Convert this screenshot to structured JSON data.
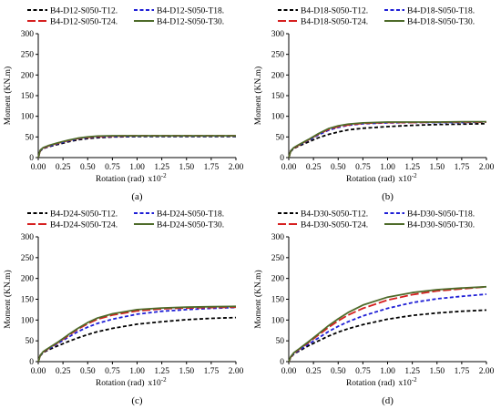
{
  "chart_data": [
    {
      "type": "line",
      "panel_label": "(a)",
      "xlabel": "Rotation (rad)",
      "xlabel_scale": "x10",
      "xlabel_scale_exp": "-2",
      "ylabel": "Moment (KN.m)",
      "xlim": [
        0,
        2.0
      ],
      "ylim": [
        0,
        300
      ],
      "x_ticks": [
        "0.00",
        "0.25",
        "0.50",
        "0.75",
        "1.00",
        "1.25",
        "1.50",
        "1.75",
        "2.00"
      ],
      "y_ticks": [
        "0",
        "50",
        "100",
        "150",
        "200",
        "250",
        "300"
      ],
      "grid": false,
      "legend_position": "top",
      "series": [
        {
          "name": "B4-D12-S050-T12.",
          "color": "#000000",
          "dash": "dashed",
          "x": [
            0,
            0.02,
            0.05,
            0.1,
            0.2,
            0.3,
            0.4,
            0.5,
            0.6,
            0.75,
            1.0,
            1.25,
            1.5,
            1.75,
            2.0
          ],
          "y": [
            0,
            16,
            22,
            26,
            32,
            38,
            43,
            46,
            48,
            50,
            51,
            51,
            51,
            51,
            51
          ]
        },
        {
          "name": "B4-D12-S050-T18.",
          "color": "#1f1fd6",
          "dash": "dashed",
          "x": [
            0,
            0.02,
            0.05,
            0.1,
            0.2,
            0.3,
            0.4,
            0.5,
            0.6,
            0.75,
            1.0,
            1.25,
            1.5,
            1.75,
            2.0
          ],
          "y": [
            0,
            17,
            23,
            27,
            34,
            40,
            45,
            48,
            50,
            51,
            52,
            52,
            52,
            52,
            52
          ]
        },
        {
          "name": "B4-D12-S050-T24.",
          "color": "#d62020",
          "dash": "longdash",
          "x": [
            0,
            0.02,
            0.05,
            0.1,
            0.2,
            0.3,
            0.4,
            0.5,
            0.6,
            0.75,
            1.0,
            1.25,
            1.5,
            1.75,
            2.0
          ],
          "y": [
            0,
            17,
            23,
            28,
            35,
            41,
            46,
            49,
            51,
            52,
            53,
            53,
            53,
            53,
            53
          ]
        },
        {
          "name": "B4-D12-S050-T30.",
          "color": "#4e6b2a",
          "dash": "solid",
          "x": [
            0,
            0.02,
            0.05,
            0.1,
            0.2,
            0.3,
            0.4,
            0.5,
            0.6,
            0.75,
            1.0,
            1.25,
            1.5,
            1.75,
            2.0
          ],
          "y": [
            0,
            18,
            24,
            29,
            36,
            42,
            47,
            50,
            52,
            53,
            53,
            53,
            53,
            53,
            53
          ]
        }
      ]
    },
    {
      "type": "line",
      "panel_label": "(b)",
      "xlabel": "Rotation (rad)",
      "xlabel_scale": "x10",
      "xlabel_scale_exp": "-2",
      "ylabel": "Moment (KN.m)",
      "xlim": [
        0,
        2.0
      ],
      "ylim": [
        0,
        300
      ],
      "x_ticks": [
        "0.00",
        "0.25",
        "0.50",
        "0.75",
        "1.00",
        "1.25",
        "1.50",
        "1.75",
        "2.00"
      ],
      "y_ticks": [
        "0",
        "50",
        "100",
        "150",
        "200",
        "250",
        "300"
      ],
      "grid": false,
      "legend_position": "top",
      "series": [
        {
          "name": "B4-D18-S050-T12.",
          "color": "#000000",
          "dash": "dashed",
          "x": [
            0,
            0.02,
            0.05,
            0.1,
            0.2,
            0.3,
            0.4,
            0.5,
            0.6,
            0.75,
            1.0,
            1.25,
            1.5,
            1.75,
            2.0
          ],
          "y": [
            0,
            15,
            22,
            28,
            38,
            48,
            56,
            62,
            67,
            71,
            75,
            78,
            80,
            81,
            82
          ]
        },
        {
          "name": "B4-D18-S050-T18.",
          "color": "#1f1fd6",
          "dash": "dashed",
          "x": [
            0,
            0.02,
            0.05,
            0.1,
            0.2,
            0.3,
            0.4,
            0.5,
            0.6,
            0.75,
            1.0,
            1.25,
            1.5,
            1.75,
            2.0
          ],
          "y": [
            0,
            16,
            23,
            30,
            42,
            55,
            66,
            73,
            78,
            82,
            84,
            85,
            85,
            85,
            86
          ]
        },
        {
          "name": "B4-D18-S050-T24.",
          "color": "#d62020",
          "dash": "longdash",
          "x": [
            0,
            0.02,
            0.05,
            0.1,
            0.2,
            0.3,
            0.4,
            0.5,
            0.6,
            0.75,
            1.0,
            1.25,
            1.5,
            1.75,
            2.0
          ],
          "y": [
            0,
            16,
            23,
            30,
            43,
            57,
            68,
            75,
            79,
            83,
            85,
            85,
            86,
            86,
            86
          ]
        },
        {
          "name": "B4-D18-S050-T30.",
          "color": "#4e6b2a",
          "dash": "solid",
          "x": [
            0,
            0.02,
            0.05,
            0.1,
            0.2,
            0.3,
            0.4,
            0.5,
            0.6,
            0.75,
            1.0,
            1.25,
            1.5,
            1.75,
            2.0
          ],
          "y": [
            0,
            16,
            24,
            31,
            44,
            58,
            70,
            77,
            81,
            84,
            86,
            86,
            86,
            87,
            87
          ]
        }
      ]
    },
    {
      "type": "line",
      "panel_label": "(c)",
      "xlabel": "Rotation (rad)",
      "xlabel_scale": "x10",
      "xlabel_scale_exp": "-2",
      "ylabel": "Moment (KN.m)",
      "xlim": [
        0,
        2.0
      ],
      "ylim": [
        0,
        300
      ],
      "x_ticks": [
        "0.00",
        "0.25",
        "0.50",
        "0.75",
        "1.00",
        "1.25",
        "1.50",
        "1.75",
        "2.00"
      ],
      "y_ticks": [
        "0",
        "50",
        "100",
        "150",
        "200",
        "250",
        "300"
      ],
      "grid": false,
      "legend_position": "top",
      "series": [
        {
          "name": "B4-D24-S050-T12.",
          "color": "#000000",
          "dash": "dashed",
          "x": [
            0,
            0.02,
            0.05,
            0.1,
            0.2,
            0.3,
            0.4,
            0.5,
            0.6,
            0.75,
            1.0,
            1.25,
            1.5,
            1.75,
            2.0
          ],
          "y": [
            0,
            14,
            22,
            28,
            38,
            48,
            57,
            65,
            72,
            80,
            90,
            96,
            101,
            104,
            106
          ]
        },
        {
          "name": "B4-D24-S050-T18.",
          "color": "#1f1fd6",
          "dash": "dashed",
          "x": [
            0,
            0.02,
            0.05,
            0.1,
            0.2,
            0.3,
            0.4,
            0.5,
            0.6,
            0.75,
            1.0,
            1.25,
            1.5,
            1.75,
            2.0
          ],
          "y": [
            0,
            15,
            23,
            30,
            44,
            58,
            72,
            83,
            92,
            102,
            114,
            121,
            125,
            128,
            130
          ]
        },
        {
          "name": "B4-D24-S050-T24.",
          "color": "#d62020",
          "dash": "longdash",
          "x": [
            0,
            0.02,
            0.05,
            0.1,
            0.2,
            0.3,
            0.4,
            0.5,
            0.6,
            0.75,
            1.0,
            1.25,
            1.5,
            1.75,
            2.0
          ],
          "y": [
            0,
            15,
            23,
            31,
            46,
            62,
            78,
            91,
            102,
            112,
            122,
            127,
            129,
            130,
            131
          ]
        },
        {
          "name": "B4-D24-S050-T30.",
          "color": "#4e6b2a",
          "dash": "solid",
          "x": [
            0,
            0.02,
            0.05,
            0.1,
            0.2,
            0.3,
            0.4,
            0.5,
            0.6,
            0.75,
            1.0,
            1.25,
            1.5,
            1.75,
            2.0
          ],
          "y": [
            0,
            15,
            24,
            32,
            47,
            64,
            80,
            94,
            105,
            115,
            125,
            129,
            131,
            132,
            133
          ]
        }
      ]
    },
    {
      "type": "line",
      "panel_label": "(d)",
      "xlabel": "Rotation (rad)",
      "xlabel_scale": "x10",
      "xlabel_scale_exp": "-2",
      "ylabel": "Moment (KN.m)",
      "xlim": [
        0,
        2.0
      ],
      "ylim": [
        0,
        300
      ],
      "x_ticks": [
        "0.00",
        "0.25",
        "0.50",
        "0.75",
        "1.00",
        "1.25",
        "1.50",
        "1.75",
        "2.00"
      ],
      "y_ticks": [
        "0",
        "50",
        "100",
        "150",
        "200",
        "250",
        "300"
      ],
      "grid": false,
      "legend_position": "top",
      "series": [
        {
          "name": "B4-D30-S050-T12.",
          "color": "#000000",
          "dash": "dashed",
          "x": [
            0,
            0.02,
            0.05,
            0.1,
            0.2,
            0.3,
            0.4,
            0.5,
            0.6,
            0.75,
            1.0,
            1.25,
            1.5,
            1.75,
            2.0
          ],
          "y": [
            0,
            10,
            18,
            25,
            38,
            50,
            61,
            71,
            79,
            89,
            102,
            111,
            117,
            121,
            124
          ]
        },
        {
          "name": "B4-D30-S050-T18.",
          "color": "#1f1fd6",
          "dash": "dashed",
          "x": [
            0,
            0.02,
            0.05,
            0.1,
            0.2,
            0.3,
            0.4,
            0.5,
            0.6,
            0.75,
            1.0,
            1.25,
            1.5,
            1.75,
            2.0
          ],
          "y": [
            0,
            11,
            19,
            27,
            42,
            57,
            72,
            85,
            96,
            110,
            128,
            142,
            151,
            157,
            162
          ]
        },
        {
          "name": "B4-D30-S050-T24.",
          "color": "#d62020",
          "dash": "longdash",
          "x": [
            0,
            0.02,
            0.05,
            0.1,
            0.2,
            0.3,
            0.4,
            0.5,
            0.6,
            0.75,
            1.0,
            1.25,
            1.5,
            1.75,
            2.0
          ],
          "y": [
            0,
            11,
            20,
            29,
            46,
            64,
            82,
            98,
            112,
            128,
            148,
            161,
            170,
            175,
            180
          ]
        },
        {
          "name": "B4-D30-S050-T30.",
          "color": "#4e6b2a",
          "dash": "solid",
          "x": [
            0,
            0.02,
            0.05,
            0.1,
            0.2,
            0.3,
            0.4,
            0.5,
            0.6,
            0.75,
            1.0,
            1.25,
            1.5,
            1.75,
            2.0
          ],
          "y": [
            0,
            12,
            21,
            30,
            48,
            67,
            86,
            103,
            118,
            136,
            155,
            166,
            173,
            177,
            180
          ]
        }
      ]
    }
  ]
}
